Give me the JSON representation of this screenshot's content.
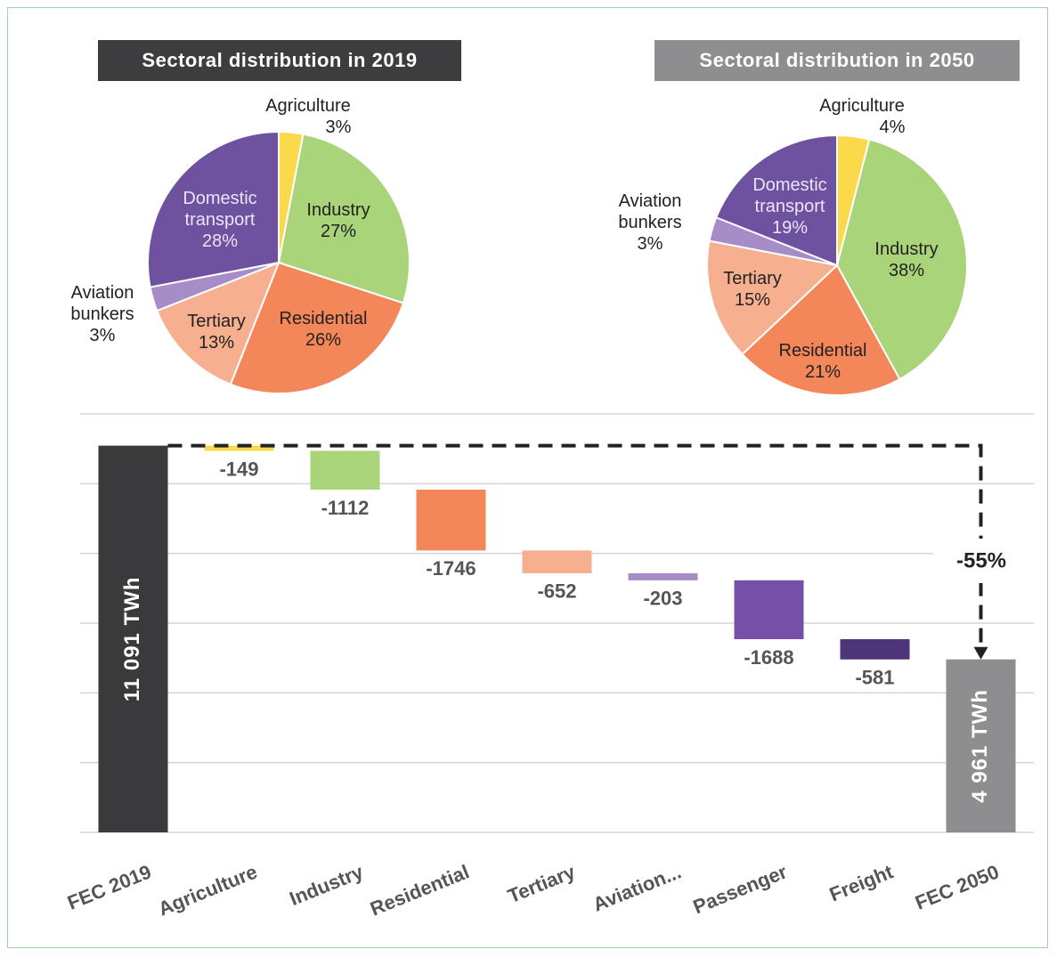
{
  "chart_data": [
    {
      "type": "pie",
      "title": "Sectoral distribution in 2019",
      "categories": [
        "Agriculture",
        "Industry",
        "Residential",
        "Tertiary",
        "Aviation bunkers",
        "Domestic transport"
      ],
      "values": [
        3,
        27,
        26,
        13,
        3,
        28
      ],
      "value_labels": [
        "3%",
        "27%",
        "26%",
        "13%",
        "3%",
        "28%"
      ],
      "colors": [
        "#fcd94a",
        "#a9d47a",
        "#f4875a",
        "#f6b090",
        "#a68dc8",
        "#6e52a0"
      ]
    },
    {
      "type": "pie",
      "title": "Sectoral distribution in 2050",
      "categories": [
        "Agriculture",
        "Industry",
        "Residential",
        "Tertiary",
        "Aviation bunkers",
        "Domestic transport"
      ],
      "values": [
        4,
        38,
        21,
        15,
        3,
        19
      ],
      "value_labels": [
        "4%",
        "38%",
        "21%",
        "15%",
        "3%",
        "19%"
      ],
      "colors": [
        "#fcd94a",
        "#a9d47a",
        "#f4875a",
        "#f6b090",
        "#a68dc8",
        "#6e52a0"
      ]
    },
    {
      "type": "waterfall",
      "categories": [
        "FEC 2019",
        "Agriculture",
        "Industry",
        "Residential",
        "Tertiary",
        "Aviation...",
        "Passenger",
        "Freight",
        "FEC 2050"
      ],
      "values": [
        11091,
        -149,
        -1112,
        -1746,
        -652,
        -203,
        -1688,
        -581,
        4961
      ],
      "value_labels": [
        "11 091 TWh",
        "-149",
        "-1112",
        "-1746",
        "-652",
        "-203",
        "-1688",
        "-581",
        "4 961 TWh"
      ],
      "totals": [
        true,
        false,
        false,
        false,
        false,
        false,
        false,
        false,
        true
      ],
      "colors": [
        "#3a3a3c",
        "#fcd94a",
        "#a9d47a",
        "#f4875a",
        "#f6b090",
        "#a68dc8",
        "#7650a8",
        "#4e3478",
        "#8e8e90"
      ],
      "ylim": [
        0,
        12000
      ],
      "yticks": [
        0,
        2000,
        4000,
        6000,
        8000,
        10000,
        12000
      ],
      "grid": true,
      "annotation": "-55%"
    }
  ]
}
